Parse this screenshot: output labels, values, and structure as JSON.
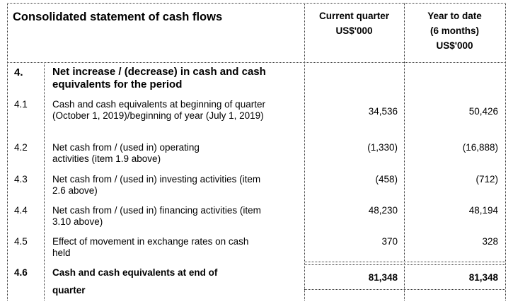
{
  "header": {
    "title": "Consolidated statement of cash flows",
    "col_current": "Current quarter",
    "col_current_unit": "US$'000",
    "col_ytd": "Year to date",
    "col_ytd_period": "(6 months)",
    "col_ytd_unit": "US$'000"
  },
  "section": {
    "number": "4.",
    "title": "Net increase / (decrease) in cash and cash equivalents for the period"
  },
  "rows": [
    {
      "no": "4.1",
      "label": "Cash and cash equivalents at beginning of quarter (October 1, 2019)/beginning of year (July 1, 2019)",
      "current": "34,536",
      "ytd": "50,426"
    },
    {
      "no": "4.2",
      "label": "Net cash from / (used in) operating activities (item 1.9 above)",
      "current": "(1,330)",
      "ytd": "(16,888)"
    },
    {
      "no": "4.3",
      "label": "Net cash from / (used in) investing activities (item 2.6 above)",
      "current": "(458)",
      "ytd": "(712)"
    },
    {
      "no": "4.4",
      "label": "Net cash from / (used in) financing activities (item 3.10 above)",
      "current": "48,230",
      "ytd": "48,194"
    },
    {
      "no": "4.5",
      "label": "Effect of movement in exchange rates on cash held",
      "current": "370",
      "ytd": "328"
    }
  ],
  "total": {
    "no": "4.6",
    "label_line1": "Cash and cash equivalents at end of",
    "label_line2": "quarter",
    "current": "81,348",
    "ytd": "81,348"
  }
}
